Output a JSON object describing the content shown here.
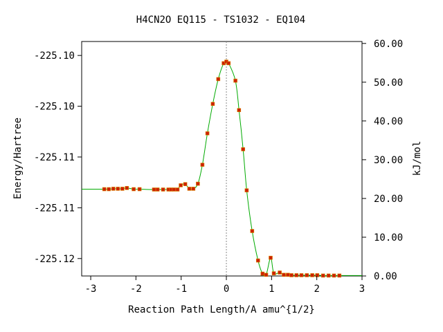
{
  "chart_data": {
    "type": "line",
    "title": "H4CN2O   EQ115 - TS1032 - EQ104",
    "xlabel": "Reaction Path Length/A amu^{1/2}",
    "ylabel": "Energy/Hartree",
    "y2label": "kJ/mol",
    "xlim": [
      -3.2,
      3.0
    ],
    "ylim": [
      0,
      60.5
    ],
    "x_ticks": [
      -3,
      -2,
      -1,
      0,
      1,
      2,
      3
    ],
    "x_tick_labels": [
      "-3",
      "-2",
      "-1",
      "0",
      "1",
      "2",
      "3"
    ],
    "y_ticks_kjmol": [
      4.5,
      17.6,
      30.7,
      43.8,
      56.9
    ],
    "y_tick_labels": [
      "-225.12",
      "-225.11",
      "-225.11",
      "-225.10",
      "-225.10"
    ],
    "y2_ticks": [
      0,
      10,
      20,
      30,
      40,
      50,
      60
    ],
    "y2_tick_labels": [
      "0.00",
      "10.00",
      "20.00",
      "30.00",
      "40.00",
      "50.00",
      "60.00"
    ],
    "ts_marker_x": 0.0,
    "curve_color": "#00aa00",
    "point_color": "#cc2200",
    "series": [
      {
        "x": [
          -2.7,
          -2.6,
          -2.5,
          -2.4,
          -2.3,
          -2.2,
          -2.05,
          -1.92,
          -1.6,
          -1.52,
          -1.4,
          -1.28,
          -1.22,
          -1.16,
          -1.08,
          -1.01,
          -0.91,
          -0.82,
          -0.73,
          -0.63,
          -0.53,
          -0.42,
          -0.3,
          -0.18,
          -0.06,
          0.0,
          0.05,
          0.2,
          0.28,
          0.37,
          0.45,
          0.57,
          0.7,
          0.8,
          0.88,
          0.98,
          1.05,
          1.18,
          1.27,
          1.36,
          1.44,
          1.55,
          1.66,
          1.78,
          1.9,
          2.01,
          2.14,
          2.26,
          2.38,
          2.5
        ],
        "y": [
          22.4,
          22.4,
          22.5,
          22.5,
          22.5,
          22.7,
          22.4,
          22.4,
          22.3,
          22.3,
          22.3,
          22.3,
          22.3,
          22.3,
          22.3,
          23.4,
          23.7,
          22.5,
          22.5,
          23.8,
          28.7,
          36.8,
          44.4,
          50.8,
          54.9,
          55.3,
          54.9,
          50.4,
          42.8,
          32.7,
          22.1,
          11.6,
          4.0,
          0.6,
          0.3,
          4.7,
          0.7,
          0.9,
          0.3,
          0.3,
          0.2,
          0.2,
          0.2,
          0.2,
          0.2,
          0.2,
          0.1,
          0.1,
          0.1,
          0.1
        ]
      }
    ]
  }
}
